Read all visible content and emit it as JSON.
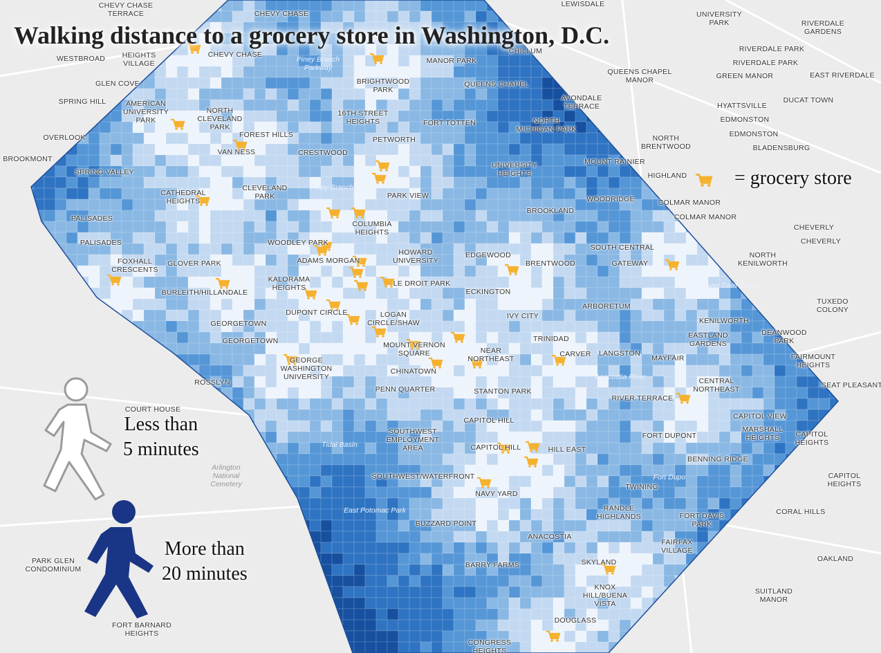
{
  "title": "Walking distance to a grocery store in Washington, D.C.",
  "legend": {
    "store": "= grocery store",
    "near": "Less than\n5 minutes",
    "far": "More than\n20 minutes"
  },
  "places": [
    "CHEVY CHASE",
    "CHEVY CHASE",
    "BRIGHTWOOD\nPARK",
    "MANOR PARK",
    "QUEENS CHAPEL",
    "16TH STREET\nHEIGHTS",
    "FORT TOTTEN",
    "NORTH\nMICHIGAN PARK",
    "AMERICAN\nUNIVERSITY\nPARK",
    "NORTH\nCLEVELAND\nPARK",
    "FOREST HILLS",
    "VAN NESS",
    "PETWORTH",
    "CRESTWOOD",
    "SPRING VALLEY",
    "UNIVERSITY\nHEIGHTS",
    "MOUNT RAINIER",
    "CATHEDRAL\nHEIGHTS",
    "CLEVELAND\nPARK",
    "PARK VIEW",
    "WOODRIDGE",
    "BROOKLAND",
    "PALISADES",
    "COLUMBIA\nHEIGHTS",
    "PALISADES",
    "WOODLEY PARK",
    "HOWARD\nUNIVERSITY",
    "SOUTH CENTRAL",
    "EDGEWOOD",
    "BRENTWOOD",
    "GATEWAY",
    "FOXHALL\nCRESCENTS",
    "GLOVER PARK",
    "ADAMS MORGAN",
    "KALORAMA\nHEIGHTS",
    "LE DROIT PARK",
    "ECKINGTON",
    "BURLEITH/HILLANDALE",
    "ARBORETUM",
    "DUPONT CIRCLE",
    "LOGAN\nCIRCLE/SHAW",
    "IVY CITY",
    "GEORGETOWN",
    "KENILWORTH",
    "EASTLAND\nGARDENS",
    "TRINIDAD",
    "GEORGETOWN",
    "MOUNT VERNON\nSQUARE",
    "NEAR\nNORTHEAST",
    "CARVER",
    "LANGSTON",
    "MAYFAIR",
    "GEORGE\nWASHINGTON\nUNIVERSITY",
    "CHINATOWN",
    "CENTRAL\nNORTHEAST",
    "PENN QUARTER",
    "STANTON PARK",
    "RIVER TERRACE",
    "CAPITOL HILL",
    "CAPITOL VIEW",
    "SOUTHWEST\nEMPLOYMENT\nAREA",
    "MARSHALL\nHEIGHTS",
    "FORT DUPONT",
    "CAPITOL HILL",
    "HILL EAST",
    "BENNING RIDGE",
    "SOUTHWEST/WATERFRONT",
    "TWINING",
    "NAVY YARD",
    "RANDLE\nHIGHLANDS",
    "FORT DAVIS\nPARK",
    "BUZZARD POINT",
    "ANACOSTIA",
    "FAIRFAX\nVILLAGE",
    "SKYLAND",
    "BARRY FARMS",
    "KNOX\nHILL/BUENA\nVISTA",
    "DOUGLASS",
    "CONGRESS\nHEIGHTS",
    "LEWISDALE",
    "UNIVERSITY\nPARK",
    "RIVERDALE\nGARDENS",
    "CHEVY CHASE\nTERRACE",
    "WESTBROAD",
    "HEIGHTS\nVILLAGE",
    "CHILLUM",
    "RIVERDALE PARK",
    "RIVERDALE PARK",
    "QUEENS CHAPEL\nMANOR",
    "GREEN MANOR",
    "EAST RIVERDALE",
    "GLEN COVE",
    "SPRING HILL",
    "AVONDALE\nTERRACE",
    "HYATTSVILLE",
    "DUCAT TOWN",
    "EDMONSTON",
    "EDMONSTON",
    "OVERLOOK",
    "NORTH\nBRENTWOOD",
    "BLADENSBURG",
    "BROOKMONT",
    "HIGHLAND",
    "COLMAR MANOR",
    "COLMAR MANOR",
    "CHEVERLY",
    "CHEVERLY",
    "NORTH\nKENILWORTH",
    "TUXEDO\nCOLONY",
    "DEANWOOD\nPARK",
    "FAIRMOUNT\nHEIGHTS",
    "SEAT PLEASANT",
    "CAPITOL\nHEIGHTS",
    "CAPITOL\nHEIGHTS",
    "CORAL HILLS",
    "OAKLAND",
    "SUITLAND\nMANOR",
    "ROSSLYN",
    "COURT HOUSE",
    "PARK GLEN\nCONDOMINIUM",
    "FORT BARNARD\nHEIGHTS"
  ],
  "water_labels": [
    "Piney Branch\nParkway",
    "Piney Branch",
    "Tidal Basin",
    "East Potomac Park",
    "Anacostia River",
    "Beaver Dam Creek",
    "Fort Dupo",
    "Arlington\nNational\nCemetery"
  ]
}
